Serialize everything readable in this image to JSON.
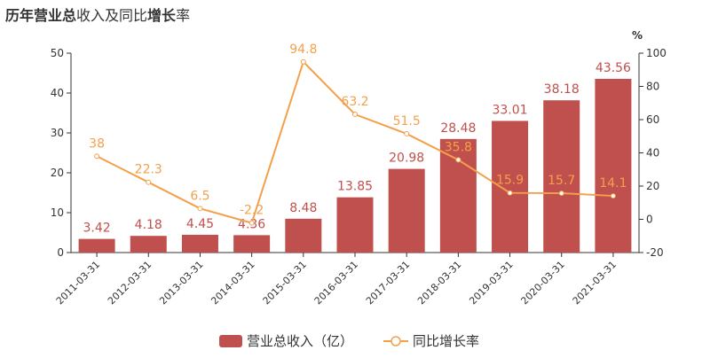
{
  "chart_data": {
    "type": "bar+line",
    "title_parts": [
      {
        "text": "历年",
        "bold": true
      },
      {
        "text": "营业总",
        "bold": true
      },
      {
        "text": "收入及同比",
        "bold": false
      },
      {
        "text": "增长",
        "bold": true
      },
      {
        "text": "率",
        "bold": false
      }
    ],
    "categories": [
      "2011-03-31",
      "2012-03-31",
      "2013-03-31",
      "2014-03-31",
      "2015-03-31",
      "2016-03-31",
      "2017-03-31",
      "2018-03-31",
      "2019-03-31",
      "2020-03-31",
      "2021-03-31"
    ],
    "series": [
      {
        "name": "营业总收入（亿）",
        "type": "bar",
        "axis": "left",
        "color": "#c0504d",
        "values": [
          3.42,
          4.18,
          4.45,
          4.36,
          8.48,
          13.85,
          20.98,
          28.48,
          33.01,
          38.18,
          43.56
        ],
        "labels": [
          "3.42",
          "4.18",
          "4.45",
          "4.36",
          "8.48",
          "13.85",
          "20.98",
          "28.48",
          "33.01",
          "38.18",
          "43.56"
        ]
      },
      {
        "name": "同比增长率",
        "type": "line",
        "axis": "right",
        "color": "#f4a04a",
        "values": [
          38,
          22.3,
          6.5,
          -2.2,
          94.8,
          63.2,
          51.5,
          35.8,
          15.9,
          15.7,
          14.1
        ],
        "labels": [
          "38",
          "22.3",
          "6.5",
          "-2.2",
          "94.8",
          "63.2",
          "51.5",
          "35.8",
          "15.9",
          "15.7",
          "14.1"
        ]
      }
    ],
    "y_left": {
      "min": 0,
      "max": 50,
      "ticks": [
        "0",
        "10",
        "20",
        "30",
        "40",
        "50"
      ]
    },
    "y_right": {
      "min": -20,
      "max": 100,
      "ticks": [
        "-20",
        "0",
        "20",
        "40",
        "60",
        "80",
        "100"
      ],
      "unit_label": "%"
    },
    "legend_position": "bottom-center",
    "grid": false
  }
}
